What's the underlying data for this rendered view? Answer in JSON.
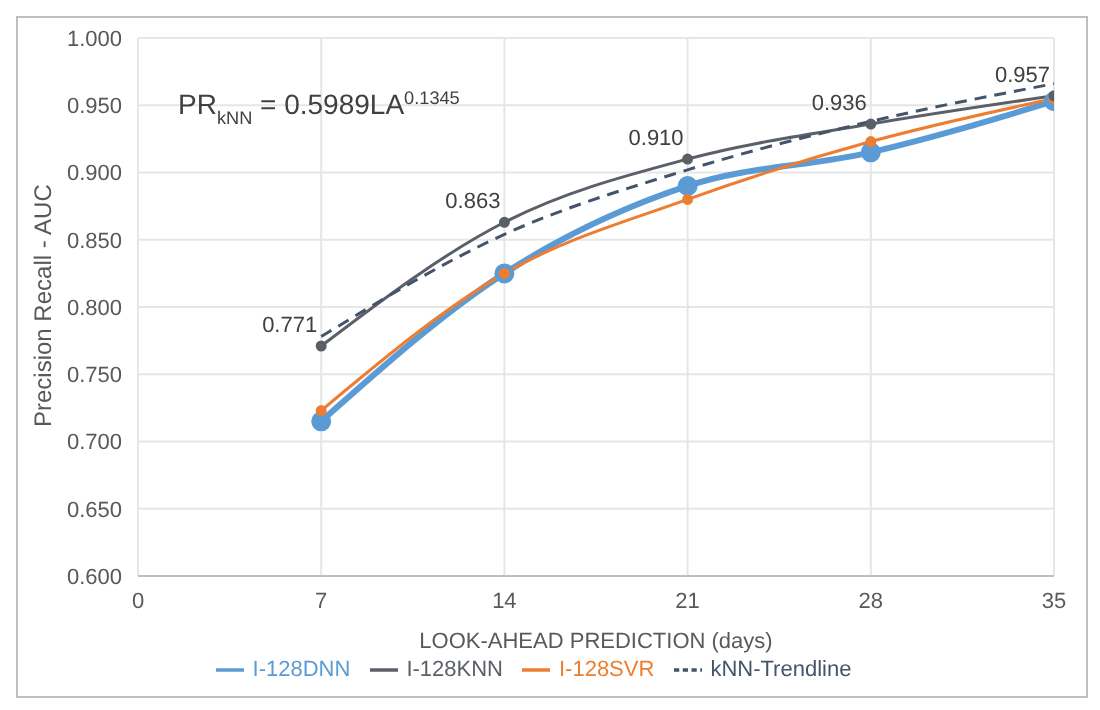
{
  "chart_data": {
    "type": "line",
    "xlabel": "LOOK-AHEAD PREDICTION (days)",
    "ylabel": "Precision Recall - AUC",
    "x": [
      7,
      14,
      21,
      28,
      35
    ],
    "series": [
      {
        "name": "I-128DNN",
        "color": "#5b9bd5",
        "values": [
          0.715,
          0.825,
          0.89,
          0.915,
          0.953
        ],
        "marker": "circle"
      },
      {
        "name": "I-128SVR",
        "color": "#ed7d31",
        "values": [
          0.723,
          0.825,
          0.88,
          0.923,
          0.955
        ],
        "marker": "circle"
      },
      {
        "name": "I-128KNN",
        "color": "#5a5f68",
        "values": [
          0.771,
          0.863,
          0.91,
          0.936,
          0.957
        ],
        "marker": "circle",
        "value_labels": [
          "0.771",
          "0.863",
          "0.910",
          "0.936",
          "0.957"
        ]
      },
      {
        "name": "kNN-Trendline",
        "color": "#44546a",
        "values": [
          0.778,
          0.854,
          0.902,
          0.938,
          0.966
        ],
        "marker": "none",
        "line_style": "dashed"
      }
    ],
    "xlim": [
      0,
      35
    ],
    "xticks": [
      0,
      7,
      14,
      21,
      28,
      35
    ],
    "ylim": [
      0.6,
      1.0
    ],
    "yticks": [
      {
        "value": 0.6,
        "label": "0.600"
      },
      {
        "value": 0.65,
        "label": "0.650"
      },
      {
        "value": 0.7,
        "label": "0.700"
      },
      {
        "value": 0.75,
        "label": "0.750"
      },
      {
        "value": 0.8,
        "label": "0.800"
      },
      {
        "value": 0.85,
        "label": "0.850"
      },
      {
        "value": 0.9,
        "label": "0.900"
      },
      {
        "value": 0.95,
        "label": "0.950"
      },
      {
        "value": 1.0,
        "label": "1.000"
      }
    ],
    "grid": true,
    "legend": "bottom",
    "annotations": [
      "PR$_{kNN}$ = 0.5989LA$^{0.1345}$"
    ]
  }
}
